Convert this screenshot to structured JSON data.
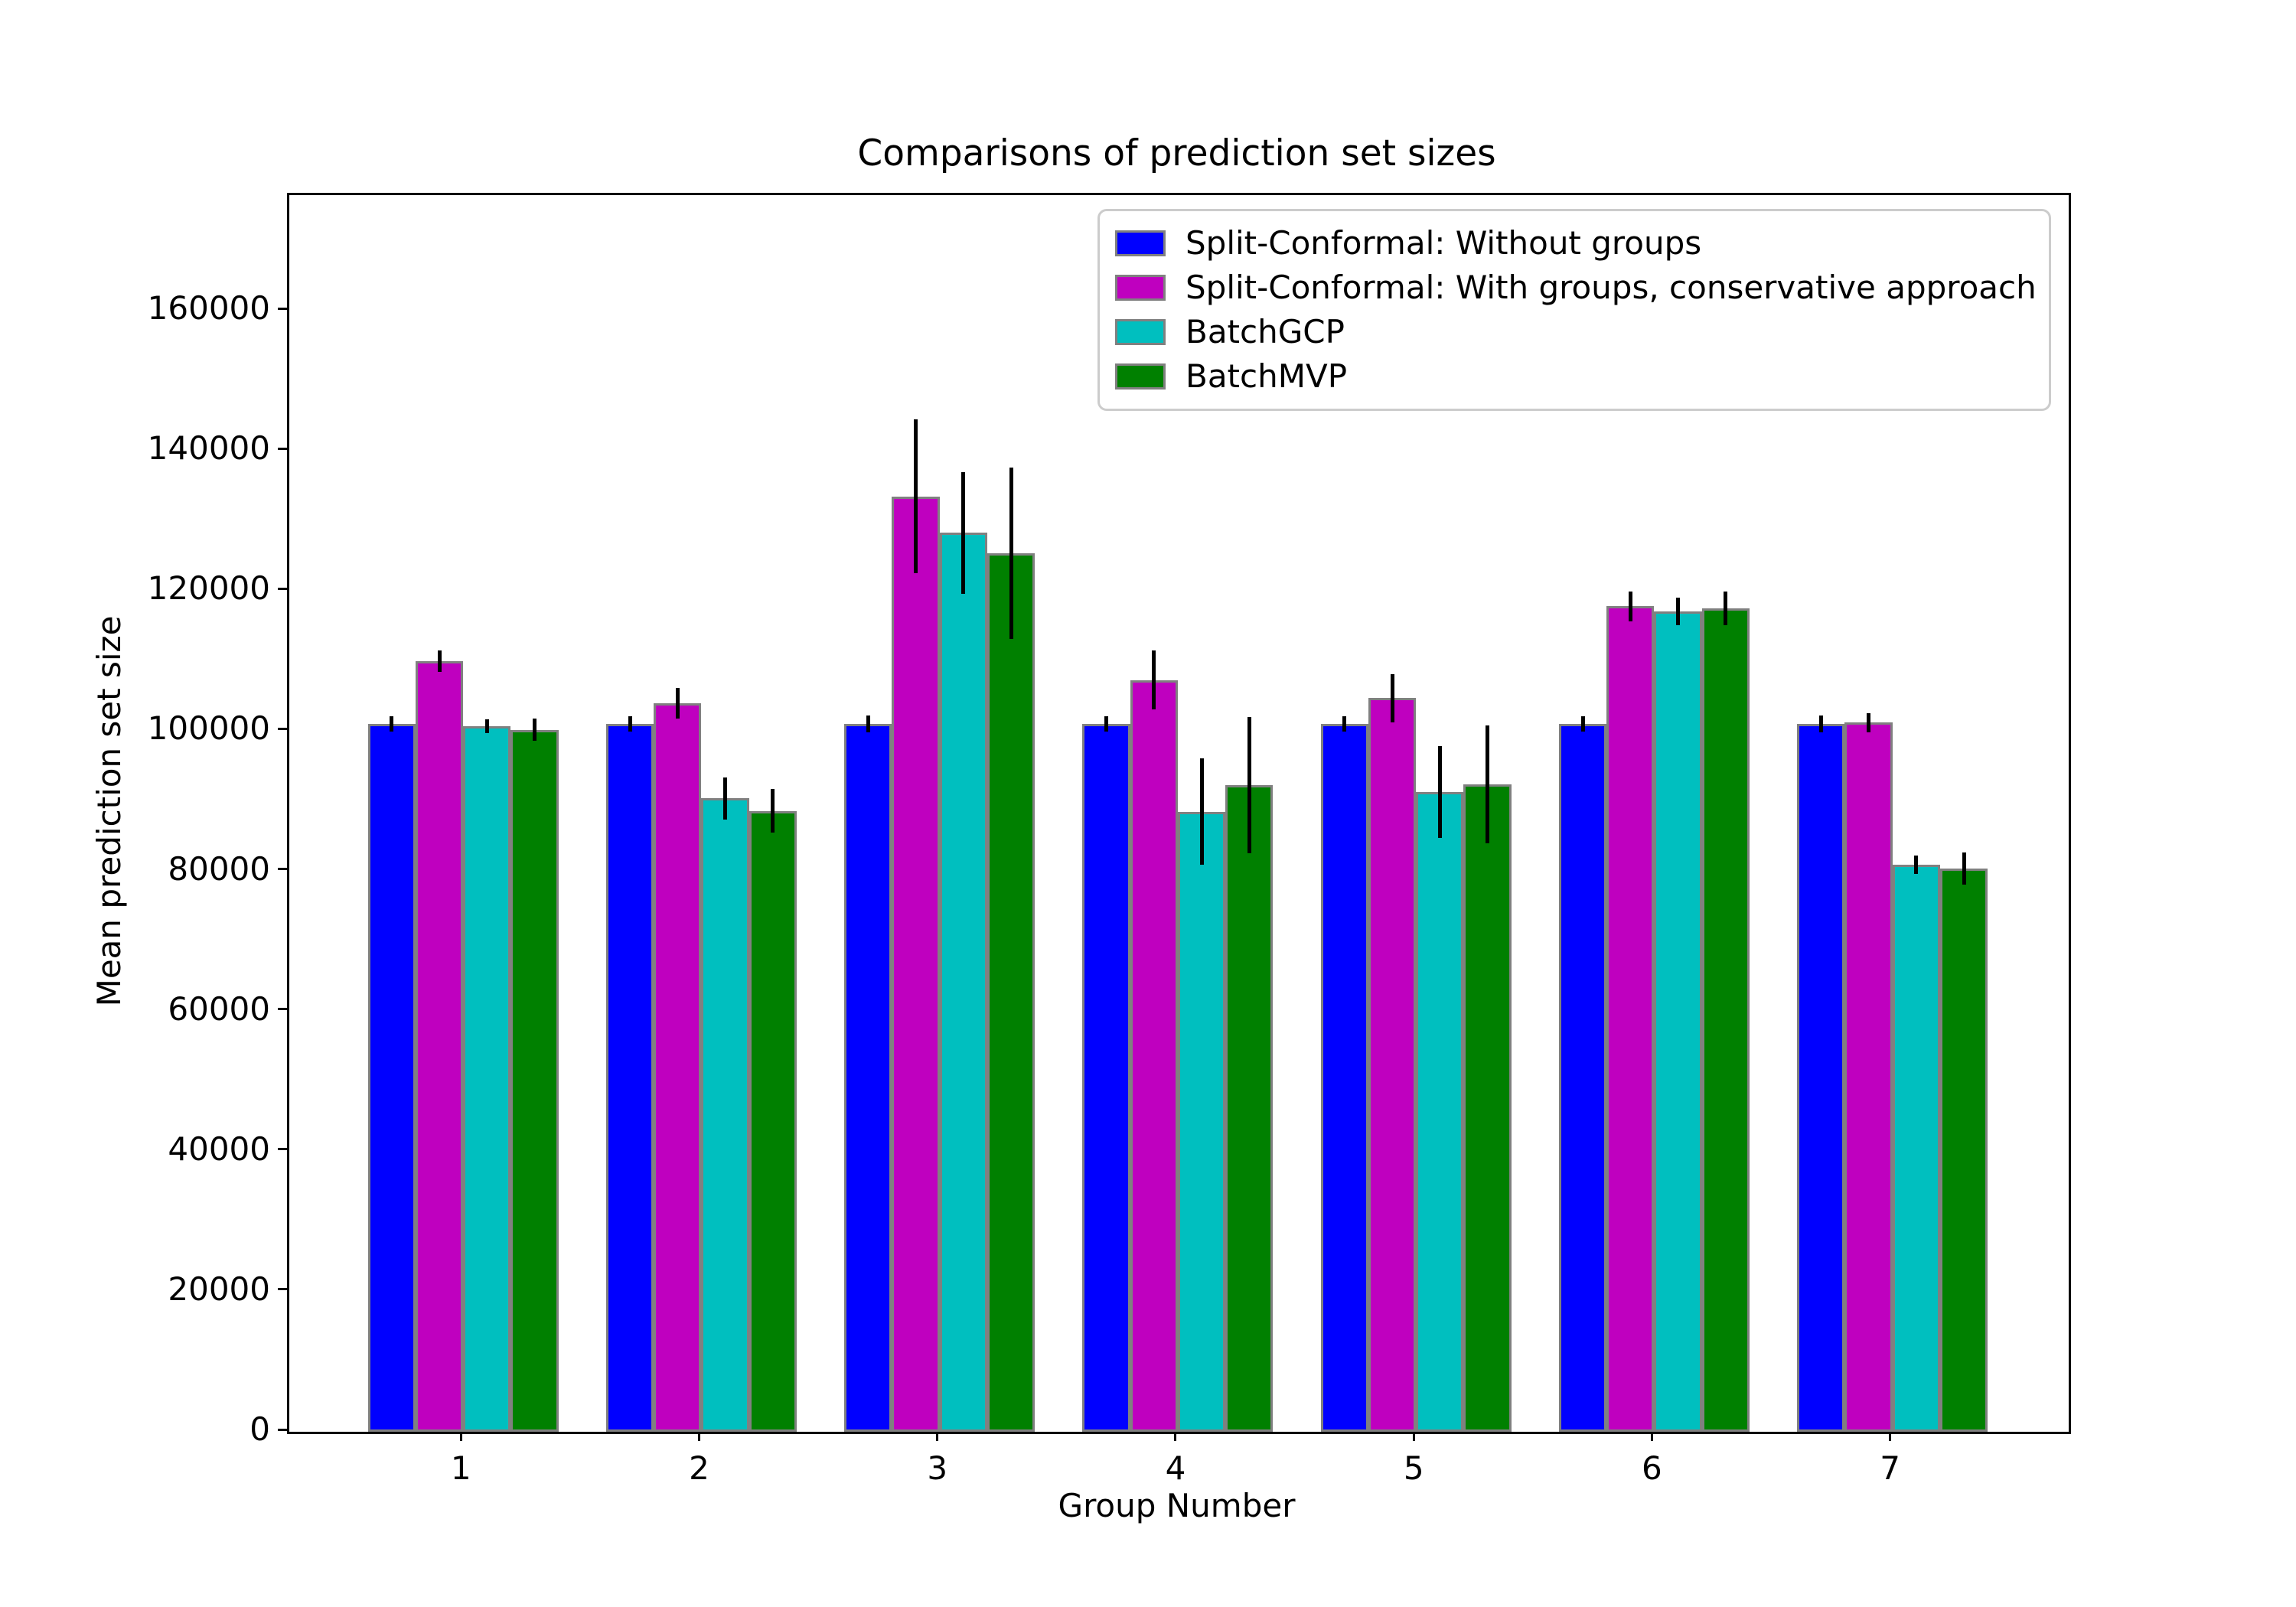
{
  "figure": {
    "title": "Comparisons of prediction set sizes",
    "xlabel": "Group Number",
    "ylabel": "Mean prediction set size"
  },
  "chart_data": {
    "type": "bar",
    "title": "Comparisons of prediction set sizes",
    "xlabel": "Group Number",
    "ylabel": "Mean prediction set size",
    "categories": [
      "1",
      "2",
      "3",
      "4",
      "5",
      "6",
      "7"
    ],
    "group_positions": [
      1,
      2,
      3,
      4,
      5,
      6,
      7
    ],
    "series": [
      {
        "name": "Split-Conformal: Without groups",
        "color": "#0000ff",
        "values": [
          101000,
          101000,
          101000,
          101000,
          101000,
          101000,
          101000
        ],
        "errors": [
          1100,
          1100,
          1200,
          1100,
          1100,
          1100,
          1200
        ]
      },
      {
        "name": "Split-Conformal: With groups, conservative approach",
        "color": "#bf00bf",
        "values": [
          110000,
          104000,
          133500,
          107300,
          104700,
          117800,
          101200
        ],
        "errors": [
          1500,
          2200,
          11000,
          4200,
          3400,
          2100,
          1400
        ]
      },
      {
        "name": "BatchGCP",
        "color": "#00bfbf",
        "values": [
          100700,
          90400,
          128300,
          88500,
          91300,
          117100,
          80900
        ],
        "errors": [
          1000,
          3000,
          8700,
          7600,
          6600,
          2000,
          1300
        ]
      },
      {
        "name": "BatchMVP",
        "color": "#008000",
        "values": [
          100200,
          88600,
          125400,
          92300,
          92400,
          117500,
          80400
        ],
        "errors": [
          1600,
          3100,
          12200,
          9700,
          8400,
          2400,
          2300
        ]
      }
    ],
    "bar_width_units": 0.2,
    "xlim": [
      0.27,
      7.74
    ],
    "ylim": [
      0,
      176500
    ],
    "yticks": [
      0,
      20000,
      40000,
      60000,
      80000,
      100000,
      120000,
      140000,
      160000
    ],
    "grid": false,
    "legend_position": "upper right",
    "styles": {
      "bar_edge_color": "#808080",
      "error_bar_color": "#000000",
      "axis_color": "#000000",
      "legend_border_color": "#cccccc",
      "text_color": "#000000",
      "background": "#ffffff"
    }
  }
}
